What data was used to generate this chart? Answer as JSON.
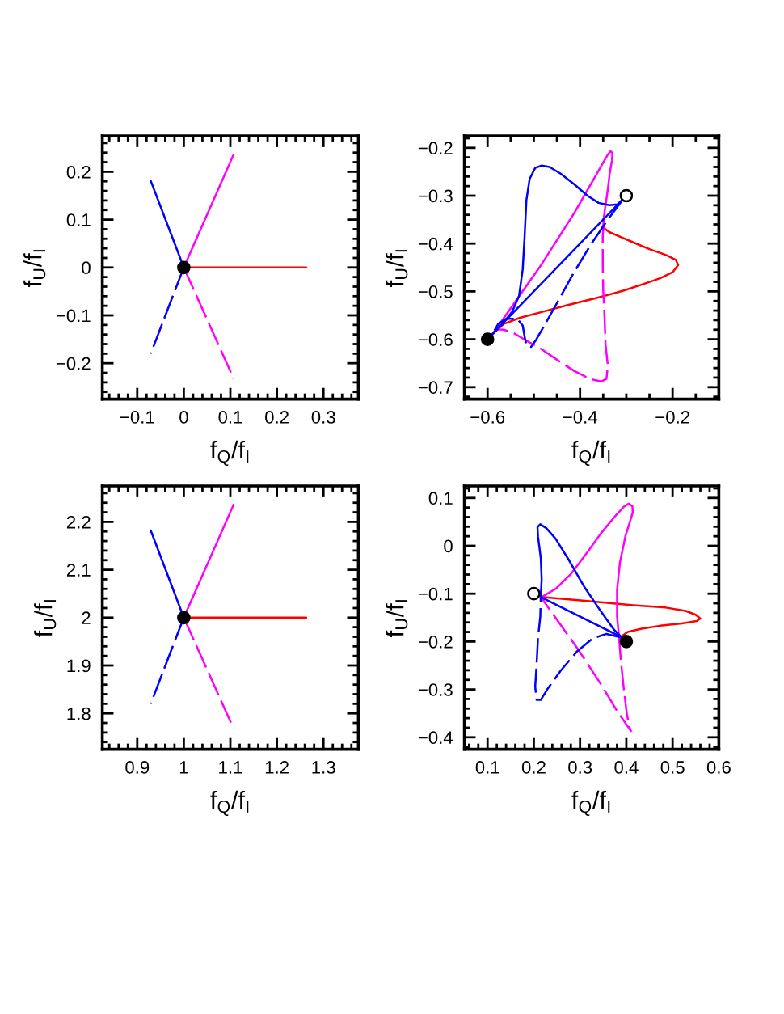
{
  "chart_data": [
    {
      "type": "line",
      "xlabel": "f$_{Q}$/f$_{I}$",
      "ylabel": "f$_{U}$/f$_{I}$",
      "xlim": [
        -0.175,
        0.375
      ],
      "ylim": [
        -0.275,
        0.275
      ],
      "xticks": [
        -0.1,
        0,
        0.1,
        0.2,
        0.3
      ],
      "yticks": [
        -0.2,
        -0.1,
        0,
        0.1,
        0.2
      ],
      "series": [
        {
          "color": "#ff0000",
          "line_style": "solid",
          "x": [
            0,
            0.263
          ],
          "values": [
            0,
            0
          ]
        },
        {
          "color": "#ff00ff",
          "line_style": "solid",
          "x": [
            0,
            0.107
          ],
          "values": [
            0,
            0.236
          ]
        },
        {
          "color": "#ff00ff",
          "line_style": "dashed",
          "x": [
            0,
            0.107
          ],
          "values": [
            0,
            -0.232
          ]
        },
        {
          "color": "#0000ff",
          "line_style": "solid",
          "x": [
            0,
            -0.071
          ],
          "values": [
            0,
            0.181
          ]
        },
        {
          "color": "#0000ff",
          "line_style": "dashed",
          "x": [
            0,
            -0.071
          ],
          "values": [
            0,
            -0.18
          ]
        },
        {
          "type": "scatter",
          "marker": "circle",
          "color": "#000000",
          "colors": [
            "#000000"
          ],
          "x": [
            0
          ],
          "values": [
            0
          ]
        }
      ]
    },
    {
      "type": "line",
      "xlabel": "f$_{Q}$/f$_{I}$",
      "ylabel": "f$_{U}$/f$_{I}$",
      "xlim": [
        -0.65,
        -0.1
      ],
      "ylim": [
        -0.725,
        -0.175
      ],
      "xticks": [
        -0.6,
        -0.4,
        -0.2
      ],
      "yticks": [
        -0.7,
        -0.6,
        -0.5,
        -0.4,
        -0.3,
        -0.2
      ],
      "series": [
        {
          "color": "#ff0000",
          "line_style": "solid",
          "x": [
            -0.59,
            -0.565,
            -0.53,
            -0.483,
            -0.425,
            -0.366,
            -0.308,
            -0.261,
            -0.226,
            -0.2,
            -0.188,
            -0.193,
            -0.214,
            -0.249,
            -0.284,
            -0.313,
            -0.337,
            -0.352
          ],
          "values": [
            -0.59,
            -0.568,
            -0.555,
            -0.543,
            -0.528,
            -0.514,
            -0.499,
            -0.484,
            -0.472,
            -0.46,
            -0.445,
            -0.434,
            -0.424,
            -0.412,
            -0.398,
            -0.386,
            -0.376,
            -0.365
          ]
        },
        {
          "color": "#ff00ff",
          "line_style": "solid",
          "x": [
            -0.59,
            -0.483,
            -0.413,
            -0.34,
            -0.334,
            -0.33,
            -0.331,
            -0.336,
            -0.34,
            -0.345,
            -0.349
          ],
          "values": [
            -0.59,
            -0.443,
            -0.337,
            -0.214,
            -0.207,
            -0.211,
            -0.226,
            -0.254,
            -0.287,
            -0.32,
            -0.348
          ]
        },
        {
          "color": "#ff00ff",
          "line_style": "dashed",
          "x": [
            -0.349,
            -0.351,
            -0.351,
            -0.35,
            -0.347,
            -0.345,
            -0.34,
            -0.343,
            -0.354,
            -0.378,
            -0.413,
            -0.448,
            -0.483,
            -0.512,
            -0.542,
            -0.565,
            -0.582,
            -0.59
          ],
          "values": [
            -0.348,
            -0.387,
            -0.443,
            -0.499,
            -0.555,
            -0.61,
            -0.655,
            -0.683,
            -0.688,
            -0.683,
            -0.666,
            -0.644,
            -0.621,
            -0.605,
            -0.588,
            -0.58,
            -0.579,
            -0.59
          ]
        },
        {
          "color": "#0000ff",
          "line_style": "solid",
          "x": [
            -0.59,
            -0.571,
            -0.547,
            -0.532,
            -0.524,
            -0.52,
            -0.516,
            -0.509,
            -0.497,
            -0.483,
            -0.466,
            -0.442,
            -0.413,
            -0.384,
            -0.36,
            -0.337,
            -0.319,
            -0.306
          ],
          "values": [
            -0.59,
            -0.571,
            -0.543,
            -0.51,
            -0.454,
            -0.387,
            -0.309,
            -0.265,
            -0.242,
            -0.237,
            -0.24,
            -0.254,
            -0.276,
            -0.3,
            -0.315,
            -0.32,
            -0.318,
            -0.306
          ]
        },
        {
          "color": "#0000ff",
          "line_style": "solid",
          "x": [
            -0.306,
            -0.59
          ],
          "values": [
            -0.306,
            -0.59
          ]
        },
        {
          "color": "#0000ff",
          "line_style": "dashed",
          "x": [
            -0.306,
            -0.313,
            -0.343,
            -0.378,
            -0.413,
            -0.448,
            -0.477,
            -0.495,
            -0.506,
            -0.516,
            -0.52,
            -0.524,
            -0.536,
            -0.559,
            -0.577,
            -0.59
          ],
          "values": [
            -0.306,
            -0.315,
            -0.354,
            -0.404,
            -0.46,
            -0.521,
            -0.571,
            -0.601,
            -0.616,
            -0.612,
            -0.594,
            -0.571,
            -0.557,
            -0.557,
            -0.568,
            -0.59
          ]
        },
        {
          "type": "scatter",
          "marker": "circle",
          "color": "#000000",
          "colors": [
            "#000000",
            "#ffffff"
          ],
          "x": [
            -0.6,
            -0.3
          ],
          "values": [
            -0.6,
            -0.3
          ]
        }
      ]
    },
    {
      "type": "line",
      "xlabel": "f$_{Q}$/f$_{I}$",
      "ylabel": "f$_{U}$/f$_{I}$",
      "xlim": [
        0.825,
        1.375
      ],
      "ylim": [
        1.725,
        2.275
      ],
      "xticks": [
        0.9,
        1,
        1.1,
        1.2,
        1.3
      ],
      "yticks": [
        1.8,
        1.9,
        2,
        2.1,
        2.2
      ],
      "series": [
        {
          "color": "#ff0000",
          "line_style": "solid",
          "x": [
            1,
            1.263
          ],
          "values": [
            2,
            2
          ]
        },
        {
          "color": "#ff00ff",
          "line_style": "solid",
          "x": [
            1,
            1.107
          ],
          "values": [
            2,
            2.236
          ]
        },
        {
          "color": "#ff00ff",
          "line_style": "dashed",
          "x": [
            1,
            1.107
          ],
          "values": [
            2,
            1.768
          ]
        },
        {
          "color": "#0000ff",
          "line_style": "solid",
          "x": [
            1,
            0.929
          ],
          "values": [
            2,
            2.182
          ]
        },
        {
          "color": "#0000ff",
          "line_style": "dashed",
          "x": [
            1,
            0.929
          ],
          "values": [
            2,
            1.82
          ]
        },
        {
          "type": "scatter",
          "marker": "circle",
          "color": "#000000",
          "colors": [
            "#000000"
          ],
          "x": [
            1
          ],
          "values": [
            2
          ]
        }
      ]
    },
    {
      "type": "line",
      "xlabel": "f$_{Q}$/f$_{I}$",
      "ylabel": "f$_{U}$/f$_{I}$",
      "xlim": [
        0.05,
        0.6
      ],
      "ylim": [
        -0.425,
        0.125
      ],
      "xticks": [
        0.1,
        0.2,
        0.3,
        0.4,
        0.5,
        0.6
      ],
      "yticks": [
        -0.4,
        -0.3,
        -0.2,
        -0.1,
        0,
        0.1
      ],
      "series": [
        {
          "color": "#ff0000",
          "line_style": "solid",
          "x": [
            0.215,
            0.276,
            0.345,
            0.415,
            0.485,
            0.528,
            0.55,
            0.56,
            0.552,
            0.52,
            0.473,
            0.433,
            0.403,
            0.39,
            0.387
          ],
          "values": [
            -0.107,
            -0.112,
            -0.118,
            -0.124,
            -0.129,
            -0.136,
            -0.144,
            -0.152,
            -0.157,
            -0.162,
            -0.167,
            -0.173,
            -0.18,
            -0.189,
            -0.193
          ]
        },
        {
          "color": "#ff00ff",
          "line_style": "solid",
          "x": [
            0.217,
            0.247,
            0.281,
            0.316,
            0.345,
            0.374,
            0.395,
            0.405,
            0.413,
            0.414,
            0.398,
            0.386,
            0.38,
            0.38,
            0.384
          ],
          "values": [
            -0.107,
            -0.09,
            -0.058,
            -0.013,
            0.026,
            0.06,
            0.082,
            0.088,
            0.083,
            0.07,
            0.02,
            -0.036,
            -0.092,
            -0.148,
            -0.188
          ]
        },
        {
          "color": "#ff00ff",
          "line_style": "dashed",
          "x": [
            0.384,
            0.388,
            0.394,
            0.401,
            0.407,
            0.41,
            0.38,
            0.345,
            0.299,
            0.258,
            0.229,
            0.217
          ],
          "values": [
            -0.188,
            -0.238,
            -0.294,
            -0.351,
            -0.379,
            -0.387,
            -0.345,
            -0.289,
            -0.221,
            -0.165,
            -0.126,
            -0.109
          ]
        },
        {
          "color": "#0000ff",
          "line_style": "solid",
          "x": [
            0.215,
            0.217,
            0.215,
            0.209,
            0.208,
            0.214,
            0.227,
            0.247,
            0.276,
            0.31,
            0.345,
            0.374,
            0.39
          ],
          "values": [
            -0.107,
            -0.07,
            -0.025,
            0.02,
            0.039,
            0.045,
            0.037,
            0.015,
            -0.03,
            -0.087,
            -0.137,
            -0.176,
            -0.191
          ]
        },
        {
          "color": "#0000ff",
          "line_style": "solid",
          "x": [
            0.39,
            0.215
          ],
          "values": [
            -0.191,
            -0.107
          ]
        },
        {
          "color": "#0000ff",
          "line_style": "dashed",
          "x": [
            0.387,
            0.357,
            0.328,
            0.293,
            0.258,
            0.229,
            0.215,
            0.206,
            0.203,
            0.206,
            0.209,
            0.214,
            0.215
          ],
          "values": [
            -0.191,
            -0.184,
            -0.193,
            -0.221,
            -0.261,
            -0.3,
            -0.322,
            -0.322,
            -0.294,
            -0.249,
            -0.193,
            -0.148,
            -0.109
          ]
        },
        {
          "type": "scatter",
          "marker": "circle",
          "color": "#000000",
          "colors": [
            "#000000",
            "#ffffff"
          ],
          "x": [
            0.4,
            0.2
          ],
          "values": [
            -0.2,
            -0.1
          ]
        }
      ]
    }
  ]
}
